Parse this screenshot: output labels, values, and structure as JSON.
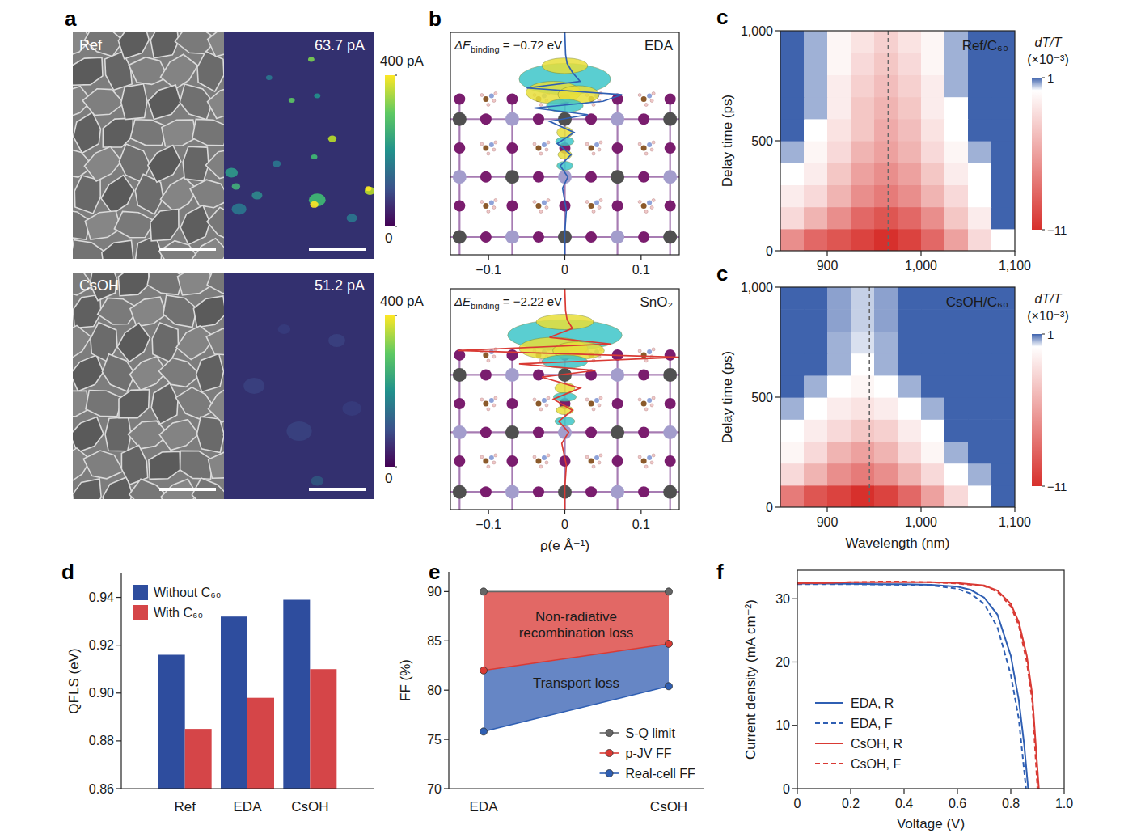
{
  "chart_data": [
    {
      "type": "image_pair",
      "panel_label": "a",
      "rows": [
        {
          "label": "Ref",
          "current_label": "63.7 pA"
        },
        {
          "label": "CsOH",
          "current_label": "51.2 pA"
        }
      ],
      "colorbar": {
        "range": [
          0,
          400
        ],
        "ticks": [
          0,
          {
            "value": 400,
            "label": "400 pA"
          }
        ]
      }
    },
    {
      "type": "line",
      "panel_label": "b",
      "title": "EDA",
      "annotation": [
        "ΔE",
        "binding",
        " = −0.72 eV"
      ],
      "xlim": [
        -0.15,
        0.15
      ],
      "xticks": [
        {
          "value": -0.1,
          "label": "−0.1"
        },
        0,
        0.1
      ],
      "ylim": [
        0,
        1
      ],
      "tick_labels": "x",
      "series": [
        {
          "color": "#2f5fb3",
          "x": [
            0,
            0,
            0.002,
            -0.003,
            0.004,
            -0.006,
            0.008,
            -0.01,
            0.012,
            -0.02,
            0.03,
            -0.04,
            0.05,
            0.075,
            -0.05,
            0.02,
            0.01,
            0.003,
            0.001,
            0
          ],
          "values": [
            0.0,
            0.1,
            0.2,
            0.3,
            0.35,
            0.4,
            0.45,
            0.5,
            0.55,
            0.6,
            0.63,
            0.66,
            0.69,
            0.72,
            0.75,
            0.78,
            0.82,
            0.86,
            0.9,
            1.0
          ]
        }
      ]
    },
    {
      "type": "line",
      "title": "SnO₂",
      "annotation": [
        "ΔE",
        "binding",
        " = −2.22 eV"
      ],
      "xlabel": "ρ(e Å⁻¹)",
      "xlim": [
        -0.15,
        0.15
      ],
      "xticks": [
        {
          "value": -0.1,
          "label": "−0.1"
        },
        0,
        0.1
      ],
      "ylim": [
        0,
        1
      ],
      "tick_labels": "x",
      "series": [
        {
          "color": "#d93a34",
          "x": [
            0,
            0,
            0.002,
            -0.004,
            0.005,
            -0.008,
            0.01,
            -0.015,
            0.02,
            -0.03,
            0.04,
            -0.06,
            0.15,
            -0.14,
            0.06,
            -0.02,
            0.01,
            0.003,
            0.001,
            0
          ],
          "values": [
            0.0,
            0.1,
            0.2,
            0.3,
            0.35,
            0.4,
            0.45,
            0.5,
            0.55,
            0.6,
            0.63,
            0.66,
            0.69,
            0.72,
            0.75,
            0.78,
            0.82,
            0.86,
            0.9,
            1.0
          ]
        }
      ]
    },
    {
      "type": "heatmap",
      "panel_label": "c",
      "title": "Ref/C₆₀",
      "ylabel": "Delay time (ps)",
      "xlim": [
        850,
        1100
      ],
      "xticks": [
        900,
        {
          "value": 1000,
          "label": "1,000"
        },
        {
          "value": 1100,
          "label": "1,100"
        }
      ],
      "ylim": [
        0,
        1000
      ],
      "yticks": [
        0,
        500,
        {
          "value": 1000,
          "label": "1,000"
        }
      ],
      "x_edges": [
        850,
        875,
        900,
        925,
        950,
        975,
        1000,
        1025,
        1050,
        1075,
        1100
      ],
      "y_edges": [
        0,
        100,
        200,
        300,
        400,
        500,
        600,
        700,
        800,
        900,
        1000
      ],
      "cells": [
        [
          -6,
          -8,
          -9,
          -10,
          -11,
          -10,
          -8,
          -5,
          -2,
          0
        ],
        [
          -2,
          -4,
          -6,
          -8,
          -9,
          -8,
          -6,
          -3,
          -1,
          1
        ],
        [
          -1,
          -2,
          -4,
          -6,
          -7,
          -6,
          -4,
          -2,
          0,
          1
        ],
        [
          0,
          -1,
          -3,
          -5,
          -6,
          -5,
          -3,
          -1,
          0,
          1
        ],
        [
          0.5,
          -0.5,
          -2,
          -4,
          -5,
          -4,
          -2,
          -0.5,
          0.5,
          1
        ],
        [
          1,
          0,
          -1.5,
          -3,
          -4.5,
          -3.5,
          -1.5,
          0,
          1,
          1
        ],
        [
          1,
          0.5,
          -1,
          -3,
          -4,
          -3,
          -1,
          0,
          1,
          1
        ],
        [
          1,
          0.5,
          -1,
          -2.5,
          -3.5,
          -2.5,
          -1,
          0.5,
          1,
          1
        ],
        [
          1,
          0.5,
          -0.5,
          -2,
          -3,
          -2,
          -0.5,
          0.5,
          1,
          1
        ],
        [
          1,
          0.5,
          -0.5,
          -1.5,
          -2.5,
          -1.5,
          -0.5,
          0.5,
          1,
          1
        ]
      ],
      "peak_wavelength": 965,
      "colorbar": {
        "range": [
          -11,
          1
        ],
        "ticks": [
          1,
          {
            "value": -11,
            "label": "−11"
          }
        ],
        "title": "dT/T",
        "unit": "(×10⁻³)"
      }
    },
    {
      "type": "heatmap",
      "panel_label": "c",
      "title": "CsOH/C₆₀",
      "ylabel": "Delay time (ps)",
      "xlabel": "Wavelength (nm)",
      "xlim": [
        850,
        1100
      ],
      "xticks": [
        900,
        {
          "value": 1000,
          "label": "1,000"
        },
        {
          "value": 1100,
          "label": "1,100"
        }
      ],
      "ylim": [
        0,
        1000
      ],
      "yticks": [
        0,
        500,
        {
          "value": 1000,
          "label": "1,000"
        }
      ],
      "x_edges": [
        850,
        875,
        900,
        925,
        950,
        975,
        1000,
        1025,
        1050,
        1075,
        1100
      ],
      "y_edges": [
        0,
        100,
        200,
        300,
        400,
        500,
        600,
        700,
        800,
        900,
        1000
      ],
      "cells": [
        [
          -7,
          -9,
          -10,
          -11,
          -10,
          -8,
          -5,
          -2,
          0,
          1
        ],
        [
          -2,
          -4,
          -6,
          -7,
          -6,
          -4,
          -2,
          0,
          0.5,
          1
        ],
        [
          -0.5,
          -2,
          -4,
          -5,
          -4,
          -2,
          -0.5,
          0.5,
          1,
          1
        ],
        [
          0,
          -1,
          -2,
          -3,
          -2.5,
          -1,
          0,
          1,
          1,
          1
        ],
        [
          0.5,
          0,
          -1,
          -1.5,
          -1,
          0,
          0.5,
          1,
          1,
          1
        ],
        [
          1,
          0.5,
          0,
          -0.5,
          0,
          0.5,
          1,
          1,
          1,
          1
        ],
        [
          1,
          1,
          0.5,
          0,
          0.5,
          1,
          1,
          1,
          1,
          1
        ],
        [
          1,
          1,
          0.5,
          0.2,
          0.5,
          1,
          1,
          1,
          1,
          1
        ],
        [
          1,
          1,
          0.6,
          0.3,
          0.6,
          1,
          1,
          1,
          1,
          1
        ],
        [
          1,
          1,
          0.6,
          0.3,
          0.6,
          1,
          1,
          1,
          1,
          1
        ]
      ],
      "peak_wavelength": 945,
      "colorbar": {
        "range": [
          -11,
          1
        ],
        "ticks": [
          1,
          {
            "value": -11,
            "label": "−11"
          }
        ],
        "title": "dT/T",
        "unit": "(×10⁻³)"
      }
    },
    {
      "type": "bar",
      "panel_label": "d",
      "ylabel": "QFLS (eV)",
      "categories": [
        "Ref",
        "EDA",
        "CsOH"
      ],
      "ylim": [
        0.86,
        0.95
      ],
      "yticks": [
        0.86,
        0.88,
        {
          "value": 0.9,
          "label": "0.90"
        },
        0.92,
        0.94
      ],
      "legend": "upper left",
      "series": [
        {
          "name": "Without C₆₀",
          "color": "#2e4d9e",
          "values": [
            0.916,
            0.932,
            0.939
          ]
        },
        {
          "name": "With C₆₀",
          "color": "#d54548",
          "values": [
            0.885,
            0.898,
            0.91
          ]
        }
      ]
    },
    {
      "type": "line",
      "panel_label": "e",
      "ylabel": "FF (%)",
      "categories": [
        "EDA",
        "CsOH"
      ],
      "ylim": [
        70,
        92
      ],
      "yticks": [
        70,
        75,
        80,
        85,
        90
      ],
      "legend": "lower right",
      "marker": "circle",
      "series": [
        {
          "name": "S-Q limit",
          "color": "#666666",
          "values": [
            90,
            90
          ]
        },
        {
          "name": "p-JV FF",
          "color": "#d93a34",
          "values": [
            82,
            84.7
          ]
        },
        {
          "name": "Real-cell FF",
          "color": "#2f5fb3",
          "values": [
            75.8,
            80.4
          ]
        }
      ],
      "regions": [
        {
          "label": "Non-radiative recombination loss",
          "color": "#e0605d"
        },
        {
          "label": "Transport loss",
          "color": "#5e7fc2"
        }
      ]
    },
    {
      "type": "line",
      "panel_label": "f",
      "xlabel": "Voltage (V)",
      "ylabel": "Current density (mA cm⁻²)",
      "xlim": [
        0,
        1
      ],
      "xticks": [
        0,
        0.2,
        0.4,
        0.6,
        0.8,
        {
          "value": 1,
          "label": "1.0"
        }
      ],
      "ylim": [
        0,
        34.5
      ],
      "yticks": [
        0,
        10,
        20,
        30
      ],
      "legend": "lower left",
      "series": [
        {
          "name": "EDA, R",
          "color": "#2f5fb3",
          "line_style": "solid",
          "x": [
            0,
            0.1,
            0.2,
            0.3,
            0.4,
            0.5,
            0.6,
            0.65,
            0.7,
            0.75,
            0.8,
            0.83,
            0.85,
            0.865
          ],
          "values": [
            32.4,
            32.4,
            32.35,
            32.3,
            32.3,
            32.2,
            31.9,
            31.4,
            30.2,
            27.5,
            21,
            14,
            7,
            0
          ]
        },
        {
          "name": "EDA, F",
          "color": "#2f5fb3",
          "line_style": "dashed",
          "x": [
            0,
            0.1,
            0.2,
            0.3,
            0.4,
            0.5,
            0.6,
            0.65,
            0.7,
            0.75,
            0.8,
            0.83,
            0.857
          ],
          "values": [
            32.3,
            32.3,
            32.3,
            32.25,
            32.2,
            32.1,
            31.6,
            30.8,
            29.2,
            25.5,
            18,
            11,
            0
          ]
        },
        {
          "name": "CsOH, R",
          "color": "#d93a34",
          "line_style": "solid",
          "x": [
            0,
            0.1,
            0.2,
            0.3,
            0.4,
            0.5,
            0.6,
            0.7,
            0.75,
            0.8,
            0.83,
            0.86,
            0.88,
            0.905
          ],
          "values": [
            32.5,
            32.5,
            32.6,
            32.6,
            32.6,
            32.6,
            32.5,
            32.1,
            31.3,
            29.2,
            26.3,
            21,
            15,
            0
          ]
        },
        {
          "name": "CsOH, F",
          "color": "#d93a34",
          "line_style": "dashed",
          "x": [
            0,
            0.1,
            0.2,
            0.3,
            0.4,
            0.5,
            0.6,
            0.7,
            0.75,
            0.8,
            0.83,
            0.86,
            0.88,
            0.9
          ],
          "values": [
            32.4,
            32.5,
            32.6,
            32.7,
            32.7,
            32.6,
            32.4,
            32.0,
            31.1,
            28.8,
            25.8,
            20,
            14,
            0
          ]
        }
      ]
    }
  ]
}
